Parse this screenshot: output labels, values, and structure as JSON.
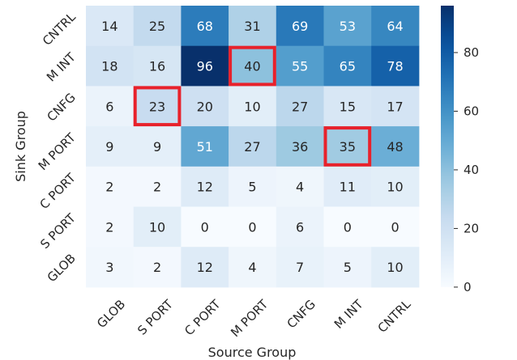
{
  "chart_data": {
    "type": "heatmap",
    "xlabel": "Source Group",
    "ylabel": "Sink Group",
    "x_categories": [
      "GLOB",
      "S PORT",
      "C PORT",
      "M PORT",
      "CNFG",
      "M INT",
      "CNTRL"
    ],
    "y_categories": [
      "CNTRL",
      "M INT",
      "CNFG",
      "M PORT",
      "C PORT",
      "S PORT",
      "GLOB"
    ],
    "values": [
      [
        14,
        25,
        68,
        31,
        69,
        53,
        64
      ],
      [
        18,
        16,
        96,
        40,
        55,
        65,
        78
      ],
      [
        6,
        23,
        20,
        10,
        27,
        15,
        17
      ],
      [
        9,
        9,
        51,
        27,
        36,
        35,
        48
      ],
      [
        2,
        2,
        12,
        5,
        4,
        11,
        10
      ],
      [
        2,
        10,
        0,
        0,
        6,
        0,
        0
      ],
      [
        3,
        2,
        12,
        4,
        7,
        5,
        10
      ]
    ],
    "highlighted_cells": [
      {
        "row": "M INT",
        "col": "M PORT"
      },
      {
        "row": "CNFG",
        "col": "S PORT"
      },
      {
        "row": "M PORT",
        "col": "M INT"
      }
    ],
    "highlight_color": "#e8212b",
    "colormap": "Blues",
    "vmin": 0,
    "vmax": 96,
    "colorbar_ticks": [
      0,
      20,
      40,
      60,
      80
    ]
  }
}
